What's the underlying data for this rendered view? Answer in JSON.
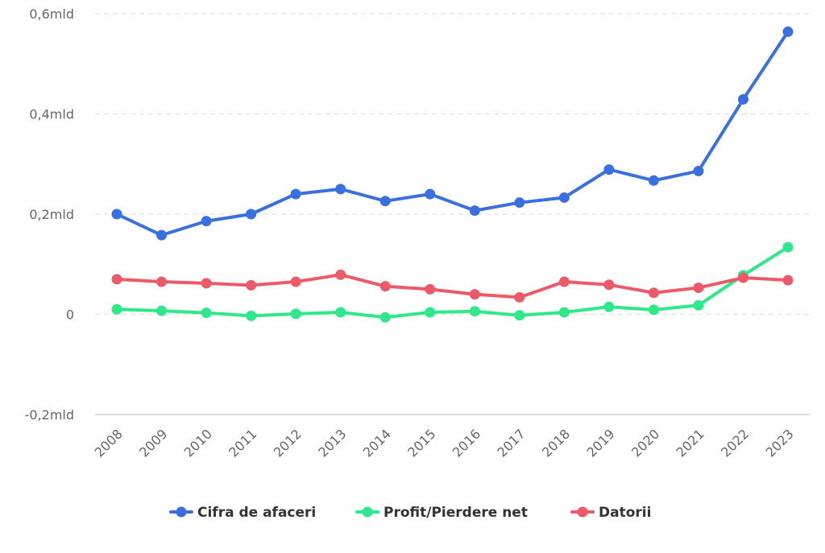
{
  "chart_data": {
    "type": "line",
    "title": "",
    "xlabel": "",
    "ylabel": "",
    "ylim": [
      -0.2,
      0.6
    ],
    "y_ticks": [
      {
        "value": 0.6,
        "label": "0,6mld"
      },
      {
        "value": 0.4,
        "label": "0,4mld"
      },
      {
        "value": 0.2,
        "label": "0,2mld"
      },
      {
        "value": 0,
        "label": "0"
      },
      {
        "value": -0.2,
        "label": "-0,2mld"
      }
    ],
    "grid": true,
    "legend_position": "bottom-center",
    "categories": [
      "2008",
      "2009",
      "2010",
      "2011",
      "2012",
      "2013",
      "2014",
      "2015",
      "2016",
      "2017",
      "2018",
      "2019",
      "2020",
      "2021",
      "2022",
      "2023"
    ],
    "series": [
      {
        "name": "Cifra de afaceri",
        "color": "#3a6fe0",
        "values": [
          0.2,
          0.158,
          0.186,
          0.2,
          0.24,
          0.25,
          0.226,
          0.24,
          0.207,
          0.223,
          0.233,
          0.289,
          0.267,
          0.286,
          0.429,
          0.564
        ]
      },
      {
        "name": "Profit/Pierdere net",
        "color": "#2ee88a",
        "values": [
          0.01,
          0.007,
          0.003,
          -0.003,
          0.001,
          0.004,
          -0.006,
          0.004,
          0.006,
          -0.002,
          0.004,
          0.015,
          0.009,
          0.018,
          0.078,
          0.134
        ]
      },
      {
        "name": "Datorii",
        "color": "#ec5a6a",
        "values": [
          0.07,
          0.065,
          0.062,
          0.058,
          0.065,
          0.079,
          0.056,
          0.05,
          0.04,
          0.034,
          0.065,
          0.059,
          0.043,
          0.053,
          0.073,
          0.068
        ]
      }
    ]
  }
}
